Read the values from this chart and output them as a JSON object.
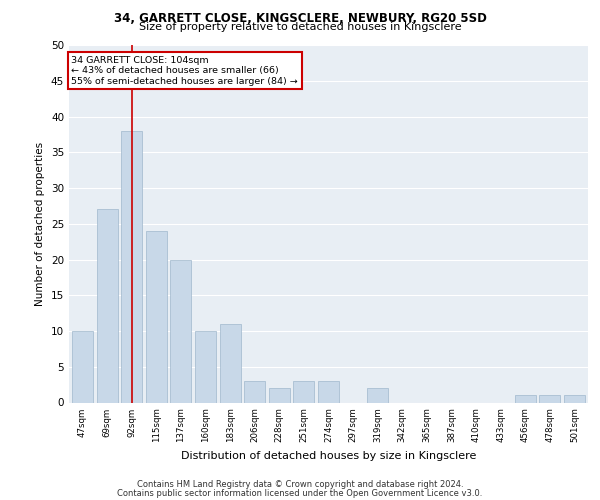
{
  "title1": "34, GARRETT CLOSE, KINGSCLERE, NEWBURY, RG20 5SD",
  "title2": "Size of property relative to detached houses in Kingsclere",
  "xlabel": "Distribution of detached houses by size in Kingsclere",
  "ylabel": "Number of detached properties",
  "categories": [
    "47sqm",
    "69sqm",
    "92sqm",
    "115sqm",
    "137sqm",
    "160sqm",
    "183sqm",
    "206sqm",
    "228sqm",
    "251sqm",
    "274sqm",
    "297sqm",
    "319sqm",
    "342sqm",
    "365sqm",
    "387sqm",
    "410sqm",
    "433sqm",
    "456sqm",
    "478sqm",
    "501sqm"
  ],
  "values": [
    10,
    27,
    38,
    24,
    20,
    10,
    11,
    3,
    2,
    3,
    3,
    0,
    2,
    0,
    0,
    0,
    0,
    0,
    1,
    1,
    1
  ],
  "bar_color": "#c8d8e8",
  "bar_edge_color": "#a0b8cc",
  "red_line_index": 2,
  "annotation_text": "34 GARRETT CLOSE: 104sqm\n← 43% of detached houses are smaller (66)\n55% of semi-detached houses are larger (84) →",
  "annotation_box_color": "#ffffff",
  "annotation_box_edge": "#cc0000",
  "ylim": [
    0,
    50
  ],
  "yticks": [
    0,
    5,
    10,
    15,
    20,
    25,
    30,
    35,
    40,
    45,
    50
  ],
  "bg_color": "#e8eef4",
  "grid_color": "#ffffff",
  "footer1": "Contains HM Land Registry data © Crown copyright and database right 2024.",
  "footer2": "Contains public sector information licensed under the Open Government Licence v3.0."
}
